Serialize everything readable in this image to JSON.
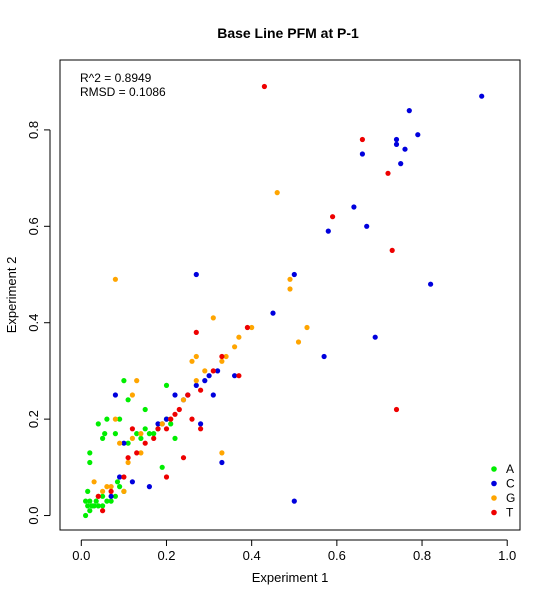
{
  "chart_data": {
    "type": "scatter",
    "title": "Base Line PFM at P-1",
    "xlabel": "Experiment 1",
    "ylabel": "Experiment 2",
    "xlim": [
      -0.05,
      1.03
    ],
    "ylim": [
      -0.03,
      0.945
    ],
    "xticks": [
      0.0,
      0.2,
      0.4,
      0.6,
      0.8,
      1.0
    ],
    "xtick_labels": [
      "0.0",
      "0.2",
      "0.4",
      "0.6",
      "0.8",
      "1.0"
    ],
    "yticks": [
      0.0,
      0.2,
      0.4,
      0.6,
      0.8
    ],
    "ytick_labels": [
      "0.0",
      "0.2",
      "0.4",
      "0.6",
      "0.8"
    ],
    "grid": false,
    "legend_position": "bottom-right",
    "annotations": [
      "R^2 = 0.8949",
      "RMSD = 0.1086"
    ],
    "series": [
      {
        "name": "A",
        "color": "#00ee00",
        "points": [
          [
            0.01,
            0.0
          ],
          [
            0.01,
            0.03
          ],
          [
            0.015,
            0.02
          ],
          [
            0.02,
            0.01
          ],
          [
            0.02,
            0.03
          ],
          [
            0.025,
            0.02
          ],
          [
            0.03,
            0.02
          ],
          [
            0.035,
            0.03
          ],
          [
            0.04,
            0.02
          ],
          [
            0.05,
            0.02
          ],
          [
            0.05,
            0.04
          ],
          [
            0.06,
            0.03
          ],
          [
            0.07,
            0.03
          ],
          [
            0.08,
            0.04
          ],
          [
            0.085,
            0.07
          ],
          [
            0.09,
            0.06
          ],
          [
            0.1,
            0.05
          ],
          [
            0.015,
            0.05
          ],
          [
            0.02,
            0.13
          ],
          [
            0.02,
            0.11
          ],
          [
            0.04,
            0.19
          ],
          [
            0.05,
            0.16
          ],
          [
            0.055,
            0.17
          ],
          [
            0.06,
            0.2
          ],
          [
            0.08,
            0.17
          ],
          [
            0.09,
            0.2
          ],
          [
            0.1,
            0.28
          ],
          [
            0.11,
            0.24
          ],
          [
            0.11,
            0.15
          ],
          [
            0.13,
            0.17
          ],
          [
            0.14,
            0.16
          ],
          [
            0.15,
            0.22
          ],
          [
            0.15,
            0.18
          ],
          [
            0.16,
            0.17
          ],
          [
            0.17,
            0.17
          ],
          [
            0.18,
            0.18
          ],
          [
            0.19,
            0.1
          ],
          [
            0.2,
            0.27
          ],
          [
            0.2,
            0.2
          ],
          [
            0.21,
            0.19
          ],
          [
            0.22,
            0.16
          ]
        ]
      },
      {
        "name": "C",
        "color": "#0000dd",
        "points": [
          [
            0.94,
            0.87
          ],
          [
            0.77,
            0.84
          ],
          [
            0.79,
            0.79
          ],
          [
            0.74,
            0.78
          ],
          [
            0.74,
            0.77
          ],
          [
            0.76,
            0.76
          ],
          [
            0.66,
            0.75
          ],
          [
            0.75,
            0.73
          ],
          [
            0.64,
            0.64
          ],
          [
            0.58,
            0.59
          ],
          [
            0.67,
            0.6
          ],
          [
            0.82,
            0.48
          ],
          [
            0.5,
            0.5
          ],
          [
            0.27,
            0.5
          ],
          [
            0.45,
            0.42
          ],
          [
            0.57,
            0.33
          ],
          [
            0.69,
            0.37
          ],
          [
            0.5,
            0.03
          ],
          [
            0.36,
            0.29
          ],
          [
            0.32,
            0.3
          ],
          [
            0.3,
            0.29
          ],
          [
            0.29,
            0.28
          ],
          [
            0.27,
            0.27
          ],
          [
            0.25,
            0.25
          ],
          [
            0.24,
            0.24
          ],
          [
            0.22,
            0.25
          ],
          [
            0.2,
            0.2
          ],
          [
            0.19,
            0.19
          ],
          [
            0.18,
            0.19
          ],
          [
            0.31,
            0.25
          ],
          [
            0.28,
            0.19
          ],
          [
            0.33,
            0.11
          ],
          [
            0.16,
            0.06
          ],
          [
            0.12,
            0.07
          ],
          [
            0.08,
            0.25
          ],
          [
            0.1,
            0.15
          ],
          [
            0.07,
            0.04
          ],
          [
            0.09,
            0.08
          ]
        ]
      },
      {
        "name": "G",
        "color": "#ffa500",
        "points": [
          [
            0.46,
            0.67
          ],
          [
            0.08,
            0.49
          ],
          [
            0.49,
            0.49
          ],
          [
            0.49,
            0.47
          ],
          [
            0.31,
            0.41
          ],
          [
            0.4,
            0.39
          ],
          [
            0.53,
            0.39
          ],
          [
            0.51,
            0.36
          ],
          [
            0.36,
            0.35
          ],
          [
            0.37,
            0.37
          ],
          [
            0.34,
            0.33
          ],
          [
            0.33,
            0.32
          ],
          [
            0.27,
            0.33
          ],
          [
            0.26,
            0.32
          ],
          [
            0.29,
            0.3
          ],
          [
            0.27,
            0.28
          ],
          [
            0.24,
            0.24
          ],
          [
            0.21,
            0.2
          ],
          [
            0.19,
            0.19
          ],
          [
            0.13,
            0.28
          ],
          [
            0.12,
            0.25
          ],
          [
            0.14,
            0.17
          ],
          [
            0.12,
            0.16
          ],
          [
            0.09,
            0.15
          ],
          [
            0.08,
            0.2
          ],
          [
            0.33,
            0.13
          ],
          [
            0.06,
            0.06
          ],
          [
            0.07,
            0.06
          ],
          [
            0.05,
            0.05
          ],
          [
            0.04,
            0.04
          ],
          [
            0.03,
            0.07
          ],
          [
            0.1,
            0.05
          ],
          [
            0.11,
            0.11
          ],
          [
            0.14,
            0.13
          ]
        ]
      },
      {
        "name": "T",
        "color": "#ee0000",
        "points": [
          [
            0.43,
            0.89
          ],
          [
            0.66,
            0.78
          ],
          [
            0.72,
            0.71
          ],
          [
            0.59,
            0.62
          ],
          [
            0.73,
            0.55
          ],
          [
            0.74,
            0.22
          ],
          [
            0.27,
            0.38
          ],
          [
            0.39,
            0.39
          ],
          [
            0.37,
            0.29
          ],
          [
            0.33,
            0.33
          ],
          [
            0.31,
            0.3
          ],
          [
            0.28,
            0.26
          ],
          [
            0.25,
            0.25
          ],
          [
            0.23,
            0.22
          ],
          [
            0.22,
            0.21
          ],
          [
            0.21,
            0.2
          ],
          [
            0.2,
            0.18
          ],
          [
            0.18,
            0.18
          ],
          [
            0.17,
            0.16
          ],
          [
            0.15,
            0.15
          ],
          [
            0.12,
            0.18
          ],
          [
            0.13,
            0.13
          ],
          [
            0.11,
            0.12
          ],
          [
            0.1,
            0.08
          ],
          [
            0.07,
            0.05
          ],
          [
            0.05,
            0.01
          ],
          [
            0.04,
            0.04
          ],
          [
            0.2,
            0.08
          ],
          [
            0.24,
            0.12
          ],
          [
            0.26,
            0.2
          ],
          [
            0.28,
            0.18
          ]
        ]
      }
    ]
  }
}
